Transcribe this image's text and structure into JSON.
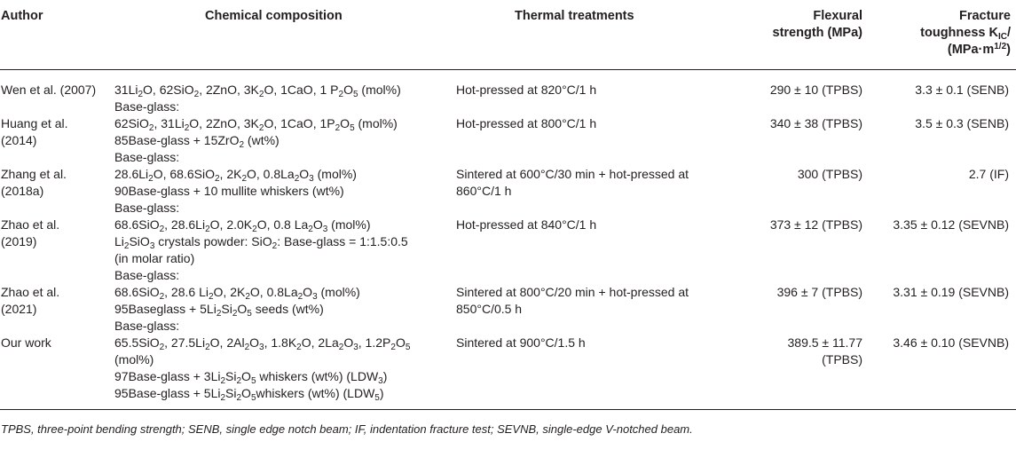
{
  "table": {
    "headers": {
      "author": "Author",
      "composition": "Chemical composition",
      "thermal": "Thermal treatments",
      "flexural_line1": "Flexural",
      "flexural_line2": "strength (MPa)",
      "fracture_line1_prefix": "Fracture",
      "fracture_line1": "toughness K",
      "fracture_sub": "IC",
      "fracture_slash": "/",
      "fracture_line2_prefix": "(MPa·m",
      "fracture_sup": "1/2",
      "fracture_line2_suffix": ")"
    },
    "rows": [
      {
        "author": [
          "Wen et al. (2007)"
        ],
        "composition": [
          "31Li2O, 62SiO2, 2ZnO, 3K2O, 1CaO, 1 P2O5 (mol%)"
        ],
        "thermal": [
          "Hot-pressed at 820°C/1 h"
        ],
        "flexural": [
          "290 ± 10 (TPBS)"
        ],
        "fracture": [
          "3.3 ± 0.1 (SENB)"
        ]
      },
      {
        "author": [
          "",
          "Huang et al.",
          "(2014)"
        ],
        "composition": [
          "Base-glass:",
          "62SiO2, 31Li2O, 2ZnO, 3K2O, 1CaO, 1P2O5 (mol%)",
          "85Base-glass + 15ZrO2 (wt%)"
        ],
        "thermal": [
          "",
          "Hot-pressed at 800°C/1 h"
        ],
        "flexural": [
          "",
          "340 ± 38 (TPBS)"
        ],
        "fracture": [
          "",
          "3.5 ± 0.3 (SENB)"
        ]
      },
      {
        "author": [
          "",
          "Zhang et al.",
          "(2018a)"
        ],
        "composition": [
          "Base-glass:",
          "28.6Li2O, 68.6SiO2, 2K2O, 0.8La2O3 (mol%)",
          "90Base-glass + 10 mullite whiskers (wt%)"
        ],
        "thermal": [
          "",
          "Sintered at 600°C/30 min + hot-pressed at",
          "860°C/1 h"
        ],
        "flexural": [
          "",
          "300 (TPBS)"
        ],
        "fracture": [
          "",
          "2.7 (IF)"
        ]
      },
      {
        "author": [
          "",
          "Zhao et al.",
          "(2019)"
        ],
        "composition": [
          "Base-glass:",
          "68.6SiO2, 28.6Li2O, 2.0K2O, 0.8 La2O3 (mol%)",
          "Li2SiO3 crystals powder: SiO2: Base-glass = 1:1.5:0.5",
          "(in molar ratio)"
        ],
        "thermal": [
          "",
          "Hot-pressed at 840°C/1 h"
        ],
        "flexural": [
          "",
          "373 ± 12 (TPBS)"
        ],
        "fracture": [
          "",
          "3.35 ± 0.12 (SEVNB)"
        ]
      },
      {
        "author": [
          "",
          "Zhao et al.",
          "(2021)"
        ],
        "composition": [
          "Base-glass:",
          "68.6SiO2, 28.6 Li2O, 2K2O, 0.8La2O3 (mol%)",
          "95Baseglass + 5Li2Si2O5 seeds (wt%)"
        ],
        "thermal": [
          "",
          "Sintered at 800°C/20 min + hot-pressed at",
          "850°C/0.5 h"
        ],
        "flexural": [
          "",
          "396 ± 7 (TPBS)"
        ],
        "fracture": [
          "",
          "3.31 ± 0.19 (SEVNB)"
        ]
      },
      {
        "author": [
          "",
          "Our work"
        ],
        "composition": [
          "Base-glass:",
          "65.5SiO2, 27.5Li2O, 2Al2O3, 1.8K2O, 2La2O3, 1.2P2O5",
          "(mol%)",
          "97Base-glass + 3Li2Si2O5 whiskers (wt%) (LDW3)",
          "95Base-glass + 5Li2Si2O5whiskers (wt%) (LDW5)"
        ],
        "thermal": [
          "",
          "Sintered at 900°C/1.5 h"
        ],
        "flexural": [
          "",
          "389.5 ± 11.77",
          "(TPBS)"
        ],
        "fracture": [
          "",
          "3.46 ± 0.10 (SEVNB)"
        ]
      }
    ]
  },
  "footnote": "TPBS, three-point bending strength; SENB, single edge notch beam; IF, indentation fracture test; SEVNB, single-edge V-notched beam."
}
